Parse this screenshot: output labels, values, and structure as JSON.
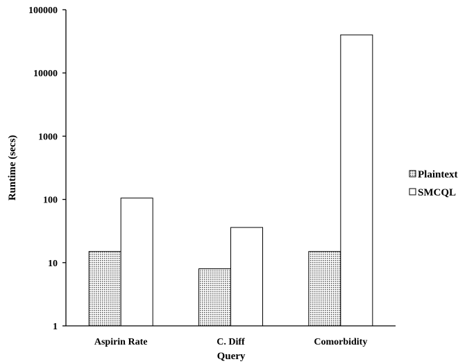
{
  "chart_data": {
    "type": "bar",
    "title": "",
    "xlabel": "Query",
    "ylabel": "Runtime (secs)",
    "yscale": "log",
    "ylim": [
      1,
      100000
    ],
    "yticks": [
      "1",
      "10",
      "100",
      "1000",
      "10000",
      "100000"
    ],
    "categories": [
      "Aspirin Rate",
      "C. Diff",
      "Comorbidity"
    ],
    "series": [
      {
        "name": "Plaintext",
        "values": [
          15,
          8,
          15
        ],
        "fill": "dotted"
      },
      {
        "name": "SMCQL",
        "values": [
          105,
          36,
          40000
        ],
        "fill": "white"
      }
    ],
    "legend_position": "right",
    "grid": false
  }
}
